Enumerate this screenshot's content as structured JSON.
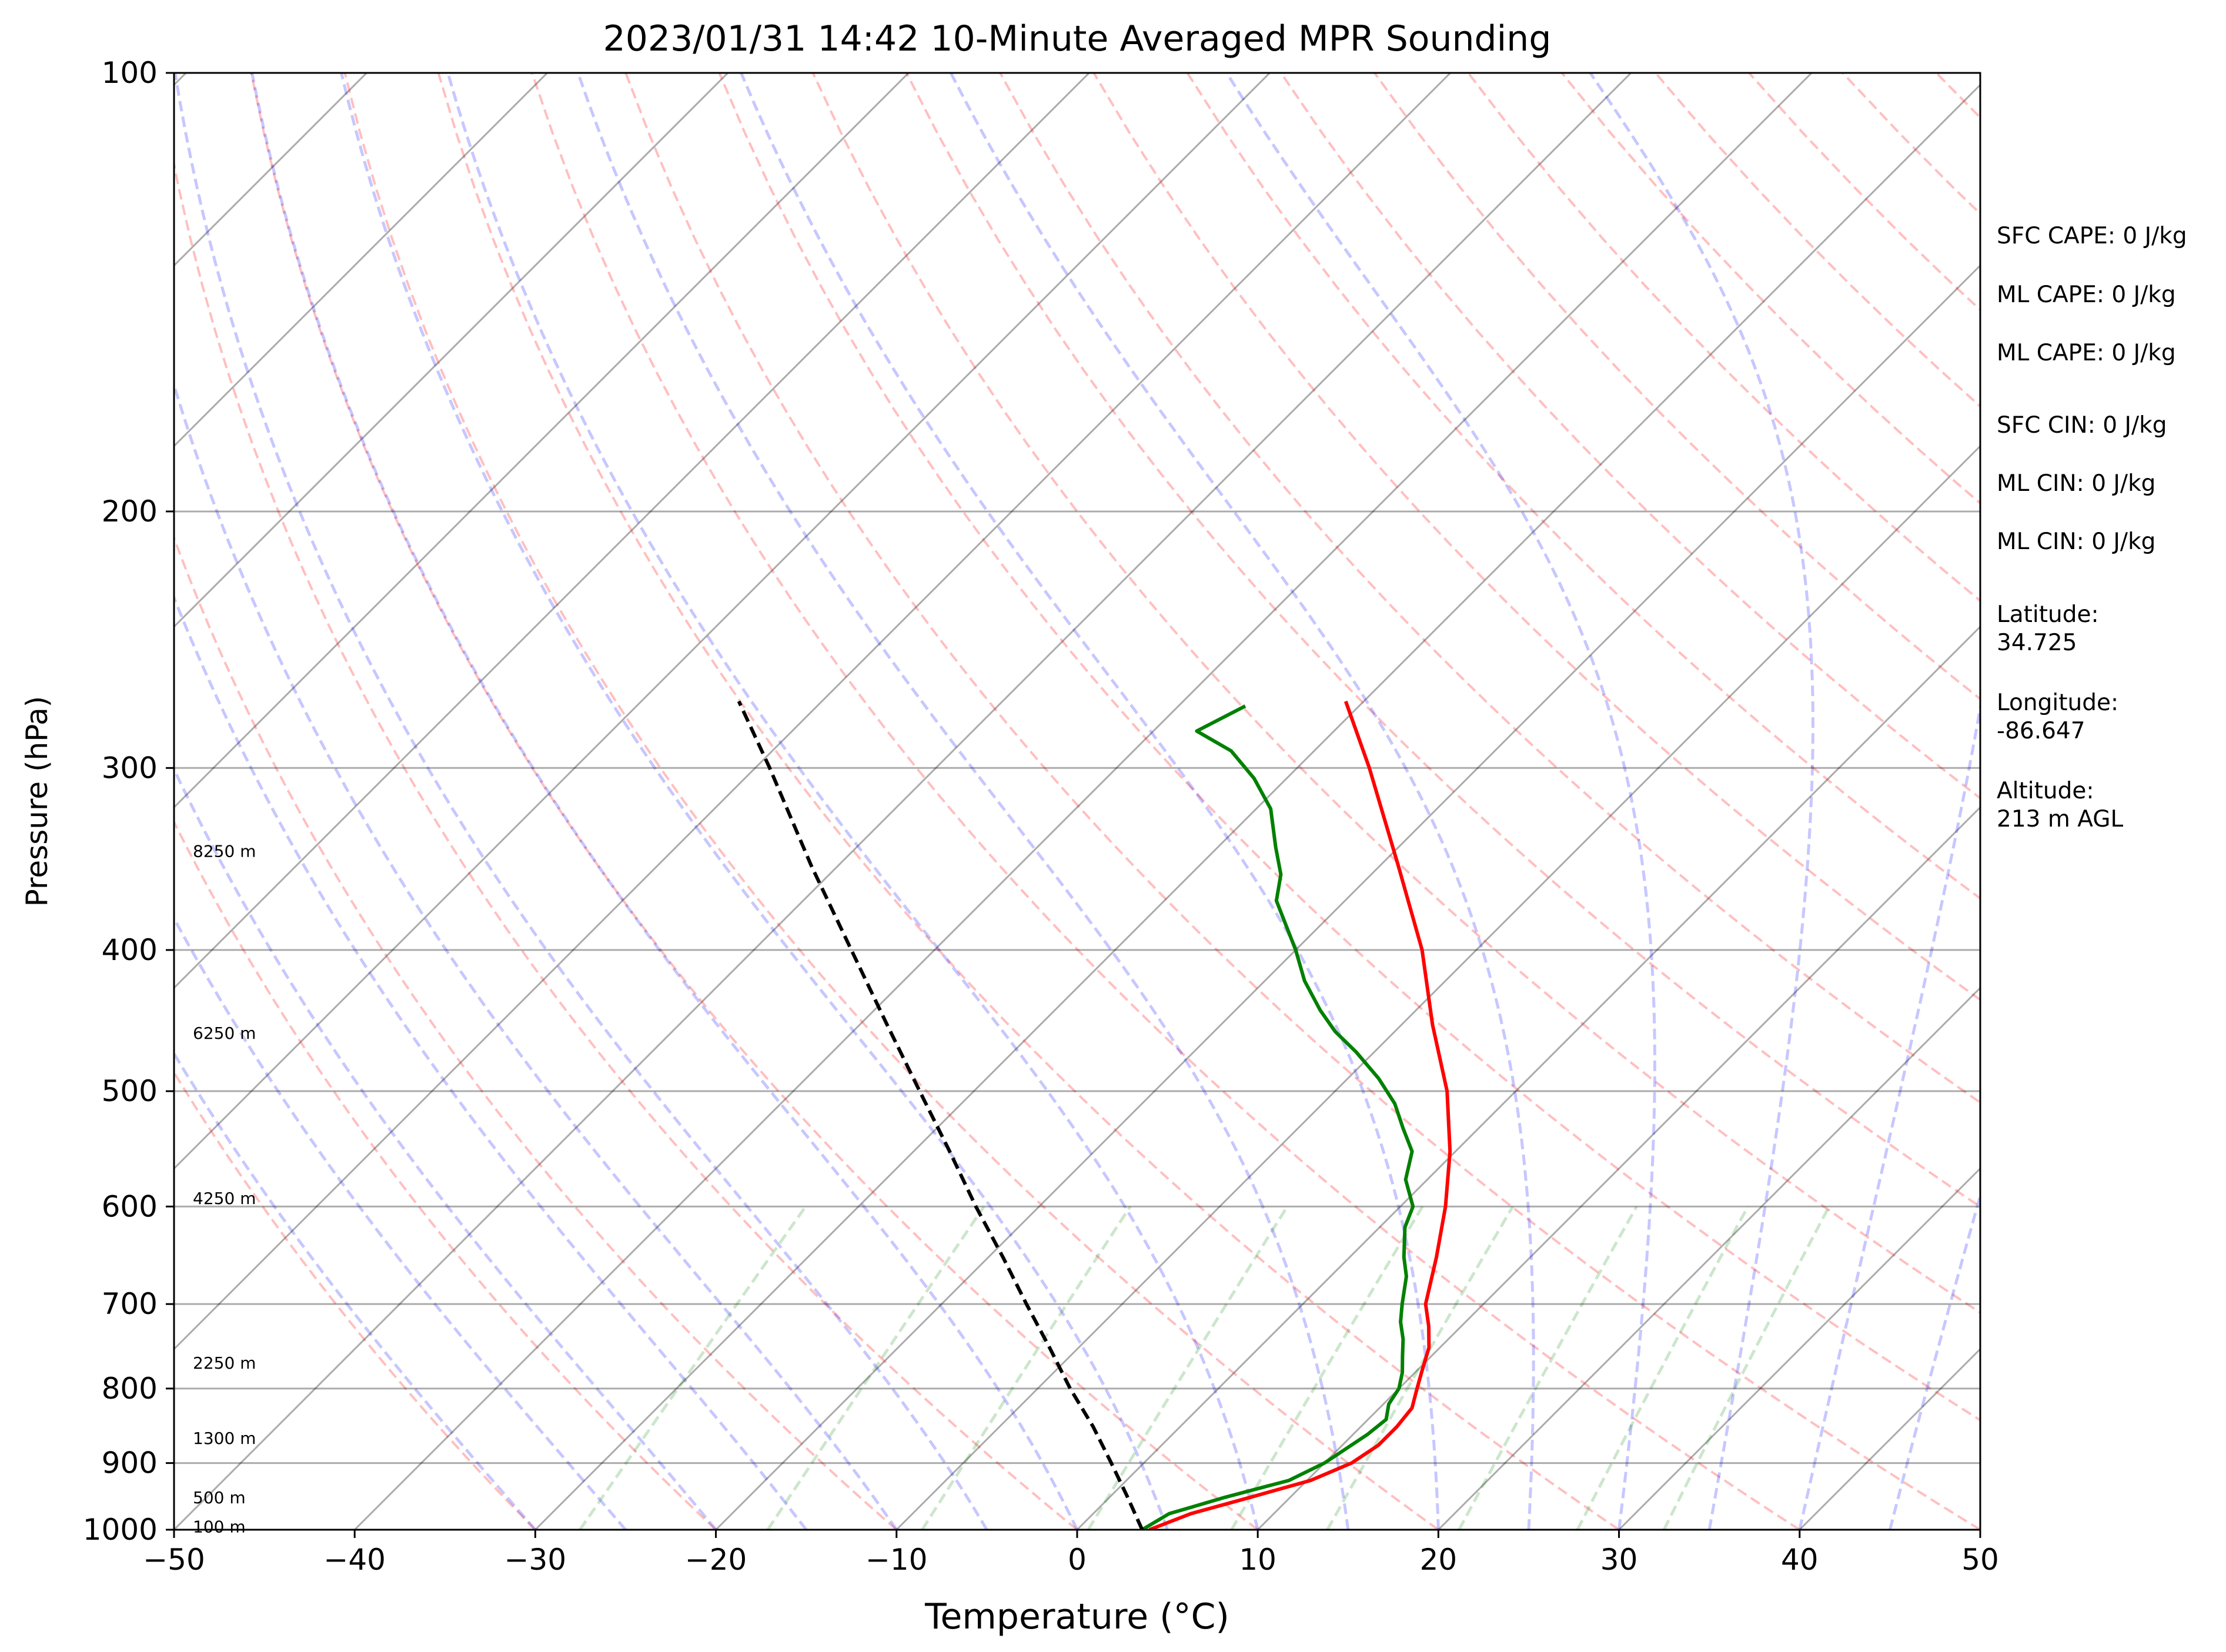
{
  "chart_data": {
    "type": "line",
    "title": "2023/01/31 14:42 10-Minute Averaged MPR Sounding",
    "xlabel": "Temperature (°C)",
    "ylabel": "Pressure (hPa)",
    "xlim": [
      -50,
      50
    ],
    "ylim": [
      1000,
      100
    ],
    "y_scale": "log",
    "x_ticks": [
      "−50",
      "−40",
      "−30",
      "−20",
      "−10",
      "0",
      "10",
      "20",
      "30",
      "40",
      "50"
    ],
    "y_ticks": [
      "100",
      "200",
      "300",
      "400",
      "500",
      "600",
      "700",
      "800",
      "900",
      "1000"
    ],
    "grid": "horizontal isobars at labelled pressures; skewed isotherms every 10 °C",
    "background_lines": {
      "dry_adiabats": "dashed red",
      "moist_adiabats": "dashed blue",
      "mixing_ratio_lines": "dashed green"
    },
    "series": [
      {
        "color": "#ff0000",
        "style": "solid",
        "points": [
          [
            1000,
            4.0
          ],
          [
            975,
            5.4
          ],
          [
            950,
            7.8
          ],
          [
            925,
            10.2
          ],
          [
            900,
            11.5
          ],
          [
            875,
            12.0
          ],
          [
            850,
            12.0
          ],
          [
            825,
            11.8
          ],
          [
            800,
            11.0
          ],
          [
            775,
            10.2
          ],
          [
            750,
            9.4
          ],
          [
            725,
            8.2
          ],
          [
            700,
            6.8
          ],
          [
            650,
            4.8
          ],
          [
            600,
            2.5
          ],
          [
            550,
            -0.3
          ],
          [
            500,
            -3.8
          ],
          [
            450,
            -8.3
          ],
          [
            400,
            -13.0
          ],
          [
            350,
            -19.0
          ],
          [
            300,
            -26.0
          ],
          [
            270,
            -31.0
          ]
        ]
      },
      {
        "color": "#008000",
        "style": "solid",
        "points": [
          [
            1000,
            3.6
          ],
          [
            975,
            4.2
          ],
          [
            950,
            6.4
          ],
          [
            925,
            9.0
          ],
          [
            900,
            10.0
          ],
          [
            880,
            10.4
          ],
          [
            860,
            10.8
          ],
          [
            840,
            11.0
          ],
          [
            820,
            10.3
          ],
          [
            800,
            10.0
          ],
          [
            780,
            9.3
          ],
          [
            760,
            8.4
          ],
          [
            740,
            7.5
          ],
          [
            720,
            6.4
          ],
          [
            700,
            5.5
          ],
          [
            670,
            4.2
          ],
          [
            650,
            3.0
          ],
          [
            620,
            1.4
          ],
          [
            600,
            0.7
          ],
          [
            575,
            -1.2
          ],
          [
            550,
            -2.4
          ],
          [
            530,
            -4.2
          ],
          [
            510,
            -6.0
          ],
          [
            490,
            -8.3
          ],
          [
            470,
            -11.0
          ],
          [
            455,
            -13.3
          ],
          [
            440,
            -15.3
          ],
          [
            420,
            -17.8
          ],
          [
            400,
            -20.0
          ],
          [
            380,
            -22.5
          ],
          [
            370,
            -23.8
          ],
          [
            355,
            -25.0
          ],
          [
            340,
            -26.8
          ],
          [
            320,
            -29.2
          ],
          [
            305,
            -31.8
          ],
          [
            292,
            -34.6
          ],
          [
            283,
            -37.6
          ],
          [
            272,
            -36.3
          ]
        ]
      },
      {
        "color": "#000000",
        "style": "dashed",
        "points": [
          [
            1000,
            3.6
          ],
          [
            950,
            1.0
          ],
          [
            900,
            -1.8
          ],
          [
            850,
            -4.8
          ],
          [
            800,
            -8.2
          ],
          [
            750,
            -11.6
          ],
          [
            700,
            -15.3
          ],
          [
            650,
            -19.2
          ],
          [
            600,
            -23.5
          ],
          [
            550,
            -28.0
          ],
          [
            500,
            -33.0
          ],
          [
            450,
            -38.5
          ],
          [
            400,
            -44.6
          ],
          [
            350,
            -51.5
          ],
          [
            300,
            -59.2
          ],
          [
            270,
            -64.6
          ]
        ]
      }
    ],
    "height_labels": [
      {
        "text": "100 m",
        "p": 995
      },
      {
        "text": "500 m",
        "p": 950
      },
      {
        "text": "1300 m",
        "p": 865
      },
      {
        "text": "2250 m",
        "p": 768
      },
      {
        "text": "4250 m",
        "p": 592
      },
      {
        "text": "6250 m",
        "p": 456
      },
      {
        "text": "8250 m",
        "p": 342
      }
    ]
  },
  "annotations": {
    "sfc_cape": "SFC CAPE: 0 J/kg",
    "ml_cape_1": "ML CAPE: 0 J/kg",
    "ml_cape_2": "ML CAPE: 0 J/kg",
    "sfc_cin": "SFC CIN: 0 J/kg",
    "ml_cin_1": "ML CIN: 0 J/kg",
    "ml_cin_2": "ML CIN: 0 J/kg",
    "latitude_label": "Latitude:",
    "latitude_value": "34.725",
    "longitude_label": "Longitude:",
    "longitude_value": "-86.647",
    "altitude_label": "Altitude:",
    "altitude_value": "213 m AGL"
  }
}
